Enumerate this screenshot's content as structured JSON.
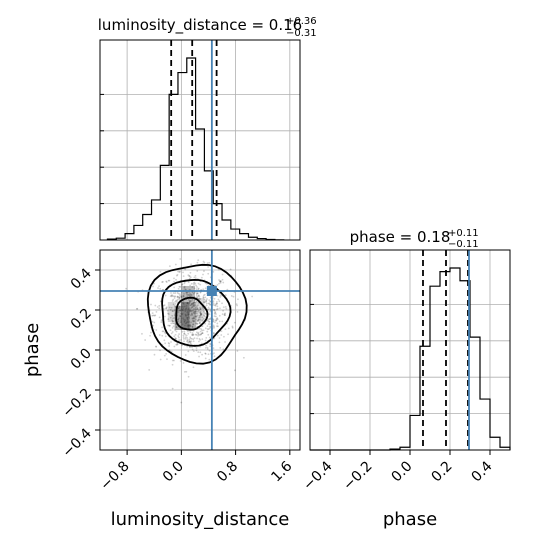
{
  "chart_data": [
    {
      "type": "histogram",
      "panel": "top-left",
      "parameter": "luminosity_distance",
      "title": {
        "prefix": "luminosity_distance = 0.16",
        "upper": "+0.36",
        "lower": "−0.31"
      },
      "xlim": [
        -1.2,
        1.75
      ],
      "bins": [
        -1.09,
        -0.96,
        -0.83,
        -0.7,
        -0.57,
        -0.44,
        -0.31,
        -0.18,
        -0.05,
        0.08,
        0.21,
        0.34,
        0.47,
        0.6,
        0.73,
        0.86,
        0.99,
        1.12,
        1.25,
        1.38,
        1.51
      ],
      "counts": [
        0.005,
        0.01,
        0.035,
        0.08,
        0.14,
        0.22,
        0.41,
        0.8,
        0.92,
        1.0,
        0.61,
        0.38,
        0.2,
        0.11,
        0.06,
        0.035,
        0.015,
        0.008,
        0.003,
        0.001
      ],
      "quantiles": [
        -0.15,
        0.16,
        0.52
      ],
      "truth": 0.45,
      "colors": {
        "hist": "#000000",
        "truth": "#4682b4",
        "grid": "#b0b0b0"
      }
    },
    {
      "type": "histogram",
      "panel": "bottom-right",
      "parameter": "phase",
      "title": {
        "prefix": "phase = 0.18",
        "upper": "+0.11",
        "lower": "−0.11"
      },
      "xlim": [
        -0.5,
        0.5
      ],
      "xticks": [
        -0.4,
        -0.2,
        0.0,
        0.2,
        0.4
      ],
      "xtick_labels": [
        "−0.4",
        "−0.2",
        "0.0",
        "0.2",
        "0.4"
      ],
      "xlabel": "phase",
      "bins": [
        -0.5,
        -0.45,
        -0.4,
        -0.35,
        -0.3,
        -0.25,
        -0.2,
        -0.15,
        -0.1,
        -0.05,
        0.0,
        0.05,
        0.1,
        0.15,
        0.2,
        0.25,
        0.3,
        0.35,
        0.4,
        0.45,
        0.5
      ],
      "counts": [
        0.0,
        0.0,
        0.0,
        0.0,
        0.0,
        0.0,
        0.0,
        0.0,
        0.005,
        0.015,
        0.19,
        0.57,
        0.9,
        0.98,
        1.0,
        0.93,
        0.62,
        0.28,
        0.07,
        0.015
      ],
      "quantiles": [
        0.065,
        0.18,
        0.29
      ],
      "truth": 0.295,
      "colors": {
        "hist": "#000000",
        "truth": "#4682b4",
        "grid": "#b0b0b0"
      }
    },
    {
      "type": "scatter",
      "panel": "bottom-left",
      "x_parameter": "luminosity_distance",
      "y_parameter": "phase",
      "xlim": [
        -1.2,
        1.75
      ],
      "ylim": [
        -0.5,
        0.5
      ],
      "xticks": [
        -0.8,
        0.0,
        0.8,
        1.6
      ],
      "xtick_labels": [
        "−0.8",
        "0.0",
        "0.8",
        "1.6"
      ],
      "yticks": [
        -0.4,
        -0.2,
        0.0,
        0.2,
        0.4
      ],
      "ytick_labels": [
        "−0.4",
        "−0.2",
        "0.0",
        "0.2",
        "0.4"
      ],
      "xlabel": "luminosity_distance",
      "ylabel": "phase",
      "truth": [
        0.45,
        0.295
      ],
      "density": {
        "center": [
          0.16,
          0.18
        ],
        "spread": [
          0.28,
          0.11
        ],
        "count": 900
      },
      "contours": [
        {
          "level": "outer",
          "center": [
            0.22,
            0.19
          ],
          "radius": [
            0.72,
            0.245
          ]
        },
        {
          "level": "middle",
          "center": [
            0.19,
            0.19
          ],
          "radius": [
            0.5,
            0.165
          ]
        },
        {
          "level": "inner",
          "center": [
            0.14,
            0.18
          ],
          "radius": [
            0.23,
            0.08
          ]
        }
      ],
      "colors": {
        "points": "#000000",
        "truth": "#4682b4",
        "grid": "#b0b0b0",
        "contour": "#000000"
      },
      "grid": true
    }
  ]
}
